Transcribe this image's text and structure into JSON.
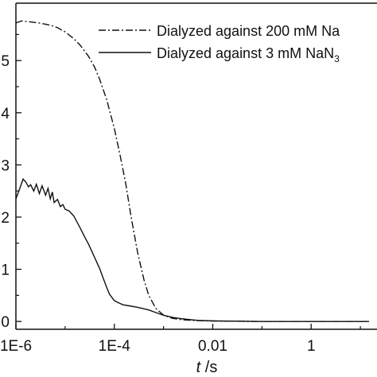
{
  "chart_data": {
    "type": "line",
    "x_scale": "log",
    "xlabel": {
      "italic": "t",
      "rest": " /s"
    },
    "xlim": [
      1e-06,
      15
    ],
    "ylim": [
      -0.15,
      6.1
    ],
    "x_ticks": [
      {
        "value": 1e-06,
        "label": "1E-6"
      },
      {
        "value": 0.0001,
        "label": "1E-4"
      },
      {
        "value": 0.01,
        "label": "0.01"
      },
      {
        "value": 1,
        "label": "1"
      }
    ],
    "y_ticks": [
      {
        "value": 0,
        "label": "0"
      },
      {
        "value": 1,
        "label": "1"
      },
      {
        "value": 2,
        "label": "2"
      },
      {
        "value": 3,
        "label": "3"
      },
      {
        "value": 4,
        "label": "4"
      },
      {
        "value": 5,
        "label": "5"
      }
    ],
    "legend_placement": "top-right",
    "series": [
      {
        "name": "Dialyzed against 200 mM Na",
        "legend_sub": "",
        "dash": "dashdot",
        "points": [
          [
            1e-06,
            5.72
          ],
          [
            1.3e-06,
            5.76
          ],
          [
            2e-06,
            5.74
          ],
          [
            3e-06,
            5.72
          ],
          [
            5e-06,
            5.68
          ],
          [
            7e-06,
            5.63
          ],
          [
            1e-05,
            5.55
          ],
          [
            1.5e-05,
            5.42
          ],
          [
            2e-05,
            5.3
          ],
          [
            3e-05,
            5.08
          ],
          [
            4e-05,
            4.87
          ],
          [
            5e-05,
            4.65
          ],
          [
            7e-05,
            4.25
          ],
          [
            0.0001,
            3.7
          ],
          [
            0.00013,
            3.2
          ],
          [
            0.00017,
            2.65
          ],
          [
            0.00022,
            2.0
          ],
          [
            0.0003,
            1.3
          ],
          [
            0.0004,
            0.8
          ],
          [
            0.0005,
            0.5
          ],
          [
            0.0007,
            0.25
          ],
          [
            0.001,
            0.12
          ],
          [
            0.0015,
            0.06
          ],
          [
            0.0025,
            0.03
          ],
          [
            0.005,
            0.015
          ],
          [
            0.01,
            0.01
          ],
          [
            0.1,
            0.0
          ],
          [
            1,
            0.0
          ],
          [
            15,
            0.0
          ]
        ]
      },
      {
        "name": "Dialyzed against 3 mM NaN",
        "legend_sub": "3",
        "dash": "solid",
        "points": [
          [
            1e-06,
            2.35
          ],
          [
            1.2e-06,
            2.55
          ],
          [
            1.4e-06,
            2.73
          ],
          [
            1.6e-06,
            2.67
          ],
          [
            1.8e-06,
            2.58
          ],
          [
            2e-06,
            2.62
          ],
          [
            2.3e-06,
            2.5
          ],
          [
            2.6e-06,
            2.63
          ],
          [
            3e-06,
            2.45
          ],
          [
            3.4e-06,
            2.6
          ],
          [
            4e-06,
            2.42
          ],
          [
            4.5e-06,
            2.55
          ],
          [
            5e-06,
            2.35
          ],
          [
            5.5e-06,
            2.48
          ],
          [
            6e-06,
            2.28
          ],
          [
            7e-06,
            2.34
          ],
          [
            8e-06,
            2.2
          ],
          [
            9e-06,
            2.24
          ],
          [
            1e-05,
            2.15
          ],
          [
            1.2e-05,
            2.12
          ],
          [
            1.5e-05,
            2.02
          ],
          [
            2e-05,
            1.8
          ],
          [
            2.5e-05,
            1.62
          ],
          [
            3e-05,
            1.48
          ],
          [
            4e-05,
            1.22
          ],
          [
            5e-05,
            1.02
          ],
          [
            6e-05,
            0.82
          ],
          [
            7e-05,
            0.65
          ],
          [
            8e-05,
            0.52
          ],
          [
            0.0001,
            0.4
          ],
          [
            0.00012,
            0.36
          ],
          [
            0.00015,
            0.32
          ],
          [
            0.0002,
            0.3
          ],
          [
            0.0003,
            0.27
          ],
          [
            0.0005,
            0.22
          ],
          [
            0.0007,
            0.17
          ],
          [
            0.001,
            0.12
          ],
          [
            0.0015,
            0.08
          ],
          [
            0.002,
            0.06
          ],
          [
            0.003,
            0.04
          ],
          [
            0.005,
            0.02
          ],
          [
            0.01,
            0.01
          ],
          [
            0.1,
            0.0
          ],
          [
            1,
            0.0
          ],
          [
            15,
            0.0
          ]
        ]
      }
    ]
  }
}
